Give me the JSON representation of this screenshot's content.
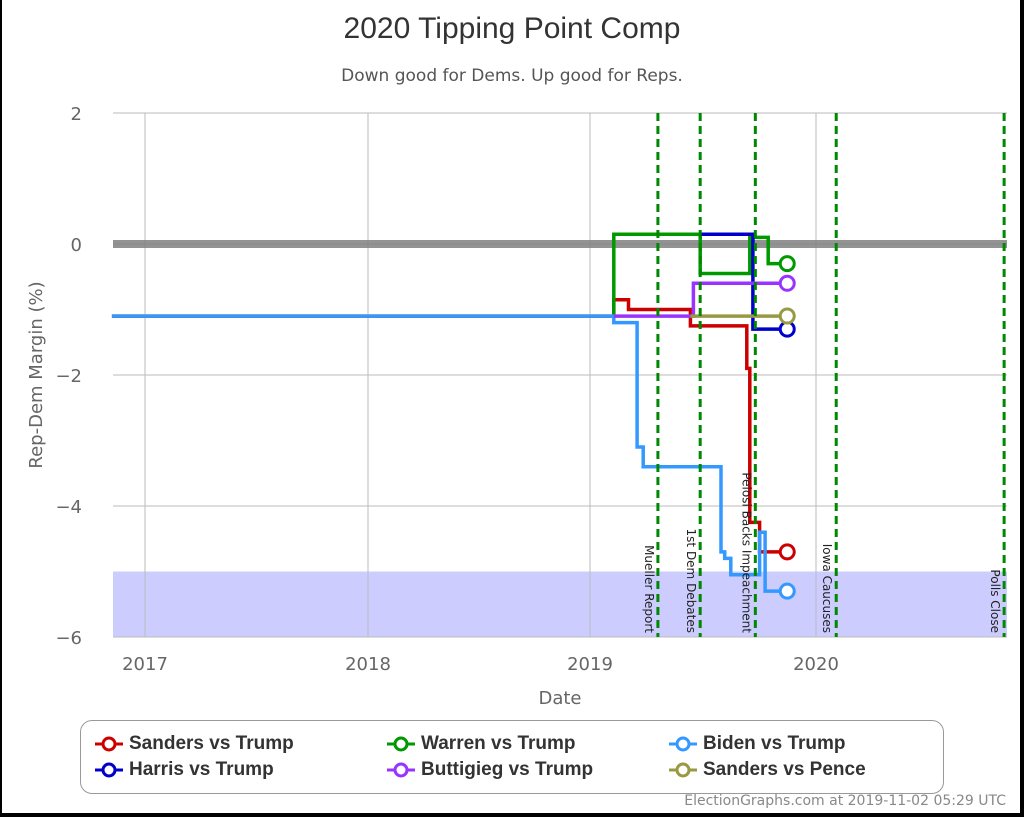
{
  "chart_data": {
    "type": "line",
    "title": "2020 Tipping Point Comp",
    "subtitle": "Down good for Dems. Up good for Reps.",
    "xlabel": "Date",
    "ylabel": "Rep-Dem Margin (%)",
    "ylim": [
      -6,
      2
    ],
    "yticks": [
      "2",
      "0",
      "−2",
      "−4",
      "−6"
    ],
    "xticks": [
      "2017",
      "2018",
      "2019",
      "2020"
    ],
    "grid": true,
    "shaded_band": {
      "from": -6,
      "to": -5,
      "color": "#ccccff"
    },
    "zero_line": {
      "value": 0,
      "color": "#808080"
    },
    "events": [
      {
        "label": "Mueller Report",
        "date": "2019-04-18"
      },
      {
        "label": "1st Dem Debates",
        "date": "2019-06-26"
      },
      {
        "label": "Pelosi Backs Impeachment",
        "date": "2019-09-24"
      },
      {
        "label": "Iowa Caucuses",
        "date": "2020-02-03"
      },
      {
        "label": "Polls Close",
        "date": "2020-11-03"
      }
    ],
    "series": [
      {
        "name": "Sanders vs Trump",
        "color": "#cc0000",
        "points": [
          [
            "2016-11-08",
            -1.1
          ],
          [
            "2019-02-05",
            -1.1
          ],
          [
            "2019-02-05",
            -0.85
          ],
          [
            "2019-03-01",
            -0.85
          ],
          [
            "2019-03-01",
            -1.0
          ],
          [
            "2019-06-10",
            -1.0
          ],
          [
            "2019-06-10",
            -1.25
          ],
          [
            "2019-09-10",
            -1.25
          ],
          [
            "2019-09-10",
            -1.9
          ],
          [
            "2019-09-15",
            -1.9
          ],
          [
            "2019-09-15",
            -4.25
          ],
          [
            "2019-10-01",
            -4.25
          ],
          [
            "2019-10-01",
            -4.7
          ],
          [
            "2019-11-02",
            -4.7
          ]
        ]
      },
      {
        "name": "Warren vs Trump",
        "color": "#009900",
        "points": [
          [
            "2019-02-05",
            -1.1
          ],
          [
            "2019-02-05",
            0.15
          ],
          [
            "2019-06-26",
            0.15
          ],
          [
            "2019-06-26",
            -0.45
          ],
          [
            "2019-09-15",
            -0.45
          ],
          [
            "2019-09-15",
            0.1
          ],
          [
            "2019-10-15",
            0.1
          ],
          [
            "2019-10-15",
            -0.3
          ],
          [
            "2019-11-02",
            -0.3
          ]
        ]
      },
      {
        "name": "Biden vs Trump",
        "color": "#3399ff",
        "points": [
          [
            "2016-11-08",
            -1.1
          ],
          [
            "2019-02-05",
            -1.1
          ],
          [
            "2019-02-05",
            -1.2
          ],
          [
            "2019-03-15",
            -1.2
          ],
          [
            "2019-03-15",
            -3.1
          ],
          [
            "2019-03-25",
            -3.1
          ],
          [
            "2019-03-25",
            -3.4
          ],
          [
            "2019-07-30",
            -3.4
          ],
          [
            "2019-07-30",
            -4.7
          ],
          [
            "2019-08-05",
            -4.7
          ],
          [
            "2019-08-05",
            -4.8
          ],
          [
            "2019-08-15",
            -4.8
          ],
          [
            "2019-08-15",
            -5.05
          ],
          [
            "2019-10-01",
            -5.05
          ],
          [
            "2019-10-01",
            -4.4
          ],
          [
            "2019-10-10",
            -4.4
          ],
          [
            "2019-10-10",
            -5.3
          ],
          [
            "2019-11-02",
            -5.3
          ]
        ]
      },
      {
        "name": "Harris vs Trump",
        "color": "#0000cc",
        "points": [
          [
            "2019-06-26",
            0.15
          ],
          [
            "2019-09-20",
            0.15
          ],
          [
            "2019-09-20",
            -1.3
          ],
          [
            "2019-11-02",
            -1.3
          ]
        ]
      },
      {
        "name": "Buttigieg vs Trump",
        "color": "#9933ff",
        "points": [
          [
            "2019-02-05",
            -1.1
          ],
          [
            "2019-06-15",
            -1.1
          ],
          [
            "2019-06-15",
            -0.6
          ],
          [
            "2019-11-02",
            -0.6
          ]
        ]
      },
      {
        "name": "Sanders vs Pence",
        "color": "#999944",
        "points": [
          [
            "2019-06-10",
            -1.1
          ],
          [
            "2019-11-02",
            -1.1
          ]
        ]
      }
    ],
    "legend_position": "bottom"
  },
  "legend": [
    {
      "label": "Sanders vs Trump",
      "color": "#cc0000"
    },
    {
      "label": "Warren vs Trump",
      "color": "#009900"
    },
    {
      "label": "Biden vs Trump",
      "color": "#3399ff"
    },
    {
      "label": "Harris vs Trump",
      "color": "#0000cc"
    },
    {
      "label": "Buttigieg vs Trump",
      "color": "#9933ff"
    },
    {
      "label": "Sanders vs Pence",
      "color": "#999944"
    }
  ],
  "credit": "ElectionGraphs.com at 2019-11-02 05:29 UTC"
}
